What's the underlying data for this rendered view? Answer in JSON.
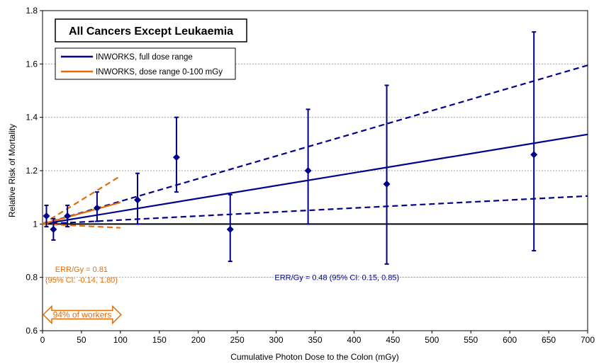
{
  "chart_data": {
    "type": "scatter",
    "title": "All Cancers Except Leukaemia",
    "xlabel": "Cumulative Photon Dose to the Colon (mGy)",
    "ylabel": "Relative Risk of Mortality",
    "xlim": [
      0,
      700
    ],
    "ylim": [
      0.6,
      1.8
    ],
    "x_ticks": [
      0,
      50,
      100,
      150,
      200,
      250,
      300,
      350,
      400,
      450,
      500,
      550,
      600,
      650,
      700
    ],
    "y_ticks": [
      0.6,
      0.8,
      1,
      1.2,
      1.4,
      1.6,
      1.8
    ],
    "y_tick_labels": [
      "0.6",
      "0.8",
      "1",
      "1.2",
      "1.4",
      "1.6",
      "1.8"
    ],
    "grid": "horizontal dotted",
    "legend_position": "top-left",
    "colors": {
      "full": "#00008b",
      "low": "#e36c09",
      "reference": "#000000"
    },
    "points": [
      {
        "x": 5,
        "y": 1.03,
        "lower": 0.99,
        "upper": 1.07
      },
      {
        "x": 14,
        "y": 0.98,
        "lower": 0.94,
        "upper": 1.02
      },
      {
        "x": 32,
        "y": 1.03,
        "lower": 0.99,
        "upper": 1.07
      },
      {
        "x": 70,
        "y": 1.06,
        "lower": 1.01,
        "upper": 1.12
      },
      {
        "x": 122,
        "y": 1.09,
        "lower": 1.0,
        "upper": 1.19
      },
      {
        "x": 172,
        "y": 1.25,
        "lower": 1.12,
        "upper": 1.4
      },
      {
        "x": 241,
        "y": 0.98,
        "lower": 0.86,
        "upper": 1.11
      },
      {
        "x": 341,
        "y": 1.2,
        "lower": 1.0,
        "upper": 1.43
      },
      {
        "x": 442,
        "y": 1.15,
        "lower": 0.85,
        "upper": 1.52
      },
      {
        "x": 631,
        "y": 1.26,
        "lower": 0.9,
        "upper": 1.72
      }
    ],
    "fits": [
      {
        "name": "INWORKS, full dose range",
        "err": 0.48,
        "ci": [
          0.15,
          0.85
        ],
        "x_range": [
          0,
          700
        ]
      },
      {
        "name": "INWORKS, dose range 0-100 mGy",
        "err": 0.81,
        "ci": [
          -0.14,
          1.8
        ],
        "x_range": [
          0,
          100
        ]
      }
    ],
    "annotations": {
      "low_err_line1": "ERR/Gy = 0.81",
      "low_err_line2": "(95% CI: -0.14, 1.80)",
      "full_err": "ERR/Gy = 0.48 (95% CI: 0.15, 0.85)",
      "workers_share": "94% of workers",
      "workers_range": [
        0,
        100
      ]
    }
  }
}
